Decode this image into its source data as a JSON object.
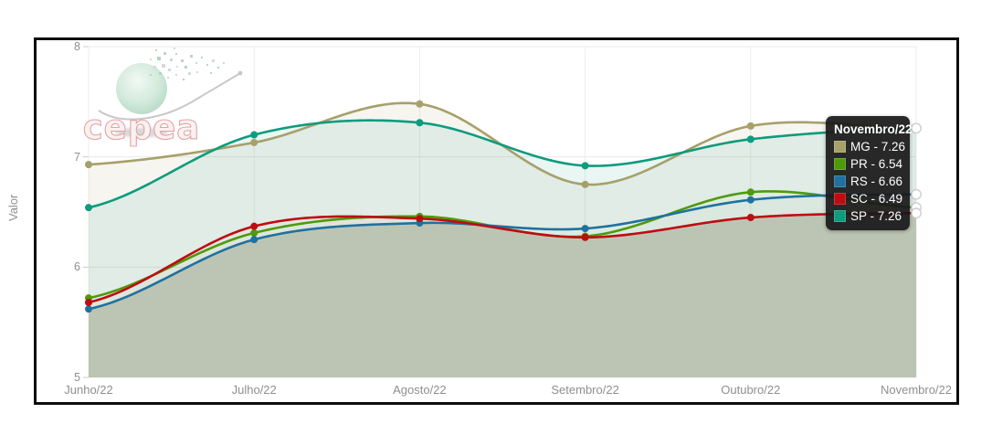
{
  "logo": {
    "text": "cepea"
  },
  "chart_data": {
    "type": "line",
    "title": "",
    "xlabel": "",
    "ylabel": "Valor",
    "x_categories": [
      "Junho/22",
      "Julho/22",
      "Agosto/22",
      "Setembro/22",
      "Outubro/22",
      "Novembro/22"
    ],
    "y_ticks": [
      5,
      6,
      7,
      8
    ],
    "ylim": [
      5,
      8
    ],
    "grid": true,
    "legend_position": "tooltip",
    "series": [
      {
        "name": "MG",
        "color": "#a6a06b",
        "fill": "rgba(166,160,107,0.10)",
        "values": [
          6.93,
          7.13,
          7.48,
          6.75,
          7.28,
          7.26
        ]
      },
      {
        "name": "PR",
        "color": "#4e9a0b",
        "fill": "rgba(78,154,11,0.02)",
        "values": [
          5.72,
          6.31,
          6.46,
          6.28,
          6.68,
          6.54
        ]
      },
      {
        "name": "RS",
        "color": "#20719f",
        "fill": "rgba(32,113,159,0.02)",
        "values": [
          5.62,
          6.25,
          6.4,
          6.35,
          6.61,
          6.66
        ]
      },
      {
        "name": "SC",
        "color": "#bf0b12",
        "fill": "rgba(191,11,18,0.02)",
        "values": [
          5.68,
          6.37,
          6.44,
          6.27,
          6.45,
          6.49
        ]
      },
      {
        "name": "SP",
        "color": "#0f9b7d",
        "fill": "rgba(15,155,125,0.09)",
        "values": [
          6.54,
          7.2,
          7.31,
          6.92,
          7.16,
          7.26
        ]
      }
    ],
    "min_envelope_fill": "rgba(186,195,177,0.95)",
    "grid_color_h": "#e9e9e9",
    "grid_color_v": "#ededed",
    "tick_color": "#cccccc"
  },
  "tooltip": {
    "title": "Novembro/22",
    "rows": [
      {
        "label": "MG - 7.26",
        "color": "#a6a06b"
      },
      {
        "label": "PR - 6.54",
        "color": "#4e9a0b"
      },
      {
        "label": "RS - 6.66",
        "color": "#20719f"
      },
      {
        "label": "SC - 6.49",
        "color": "#bf0b12"
      },
      {
        "label": "SP - 7.26",
        "color": "#0f9b7d"
      }
    ]
  }
}
